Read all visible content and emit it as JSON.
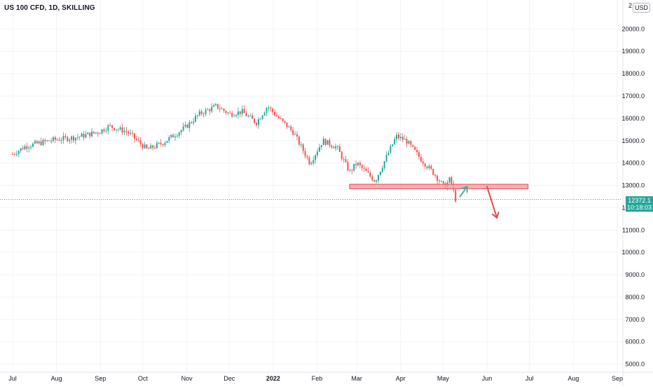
{
  "header": {
    "symbol_title": "US 100 CFD, 1D, SKILLING",
    "currency": "USD",
    "top_axis_cut_label": "2"
  },
  "price_tag": {
    "price": "12372.1",
    "countdown": "10:18:03"
  },
  "colors": {
    "up": "#26a69a",
    "down": "#ef5350",
    "grid": "#f0f3fa",
    "axis_text": "#131722",
    "zone_fill": "#f7a1a6",
    "zone_stroke": "#e8464f",
    "arrow_up": "#4caf9a",
    "arrow_down": "#e8464f",
    "price_line": "#26a69a"
  },
  "chart_data": {
    "type": "candlestick",
    "title": "US 100 CFD, 1D, SKILLING",
    "y_axis": {
      "ticks": [
        "5000.0",
        "6000.0",
        "7000.0",
        "8000.0",
        "9000.0",
        "10000.0",
        "11000.0",
        "12000.0",
        "13000.0",
        "14000.0",
        "15000.0",
        "16000.0",
        "17000.0",
        "18000.0",
        "19000.0",
        "20000.0"
      ],
      "min": 4500,
      "max": 21500,
      "position": "right"
    },
    "x_axis": {
      "labels": [
        "Jul",
        "Aug",
        "Sep",
        "Oct",
        "Nov",
        "Dec",
        "2022",
        "Feb",
        "Mar",
        "Apr",
        "May",
        "Jun",
        "Jul",
        "Aug",
        "Sep"
      ],
      "bold_labels": [
        "2022"
      ]
    },
    "grid": true,
    "last_price": 12372.1,
    "series_path": [
      [
        "2021-07-01",
        14400
      ],
      [
        "2021-07-10",
        14750
      ],
      [
        "2021-07-20",
        14900
      ],
      [
        "2021-07-31",
        15050
      ],
      [
        "2021-08-15",
        15150
      ],
      [
        "2021-08-31",
        15400
      ],
      [
        "2021-09-07",
        15650
      ],
      [
        "2021-09-20",
        15400
      ],
      [
        "2021-10-04",
        14600
      ],
      [
        "2021-10-15",
        14900
      ],
      [
        "2021-10-31",
        15600
      ],
      [
        "2021-11-10",
        16200
      ],
      [
        "2021-11-22",
        16550
      ],
      [
        "2021-12-01",
        16200
      ],
      [
        "2021-12-10",
        16300
      ],
      [
        "2021-12-20",
        15800
      ],
      [
        "2021-12-28",
        16550
      ],
      [
        "2022-01-05",
        16000
      ],
      [
        "2022-01-15",
        15400
      ],
      [
        "2022-01-27",
        14000
      ],
      [
        "2022-02-05",
        15000
      ],
      [
        "2022-02-15",
        14700
      ],
      [
        "2022-02-24",
        13600
      ],
      [
        "2022-03-01",
        14000
      ],
      [
        "2022-03-14",
        13200
      ],
      [
        "2022-03-29",
        15200
      ],
      [
        "2022-04-05",
        15000
      ],
      [
        "2022-04-15",
        14200
      ],
      [
        "2022-04-25",
        13500
      ],
      [
        "2022-05-02",
        12900
      ],
      [
        "2022-05-06",
        13300
      ],
      [
        "2022-05-11",
        12100
      ]
    ],
    "annotations": [
      {
        "type": "rectangle",
        "label": "",
        "x_start": "2022-02-24",
        "x_end": "2022-06-30",
        "y_low": 12850,
        "y_high": 13050
      },
      {
        "type": "arrow",
        "direction": "up",
        "from": [
          "2022-05-13",
          12500
        ],
        "to": [
          "2022-05-18",
          12950
        ]
      },
      {
        "type": "arrow",
        "direction": "down",
        "from": [
          "2022-06-01",
          12950
        ],
        "to": [
          "2022-06-08",
          11550
        ]
      }
    ]
  }
}
